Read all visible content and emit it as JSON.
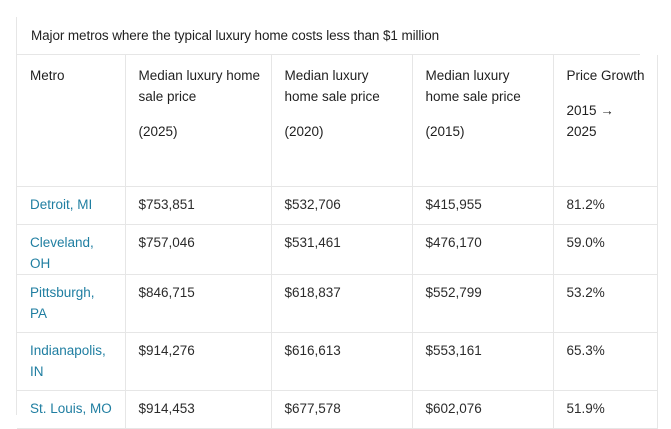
{
  "table": {
    "caption": "Major metros where the typical luxury home costs less than $1 million",
    "headers": [
      {
        "main": "Metro",
        "sub": ""
      },
      {
        "main": "Median luxury home sale price",
        "sub": "(2025)"
      },
      {
        "main": "Median luxury home sale price",
        "sub": "(2020)"
      },
      {
        "main": "Median luxury home sale price",
        "sub": "(2015)"
      },
      {
        "main": "Price Growth",
        "sub": "2015 → 2025"
      }
    ],
    "rows": [
      {
        "metro": "Detroit, MI",
        "p2025": "$753,851",
        "p2020": "$532,706",
        "p2015": "$415,955",
        "growth": "81.2%"
      },
      {
        "metro": "Cleveland, OH",
        "p2025": "$757,046",
        "p2020": "$531,461",
        "p2015": "$476,170",
        "growth": "59.0%"
      },
      {
        "metro": "Pittsburgh, PA",
        "p2025": "$846,715",
        "p2020": "$618,837",
        "p2015": "$552,799",
        "growth": "53.2%"
      },
      {
        "metro": "Indianapolis, IN",
        "p2025": "$914,276",
        "p2020": "$616,613",
        "p2015": "$553,161",
        "growth": "65.3%"
      },
      {
        "metro": "St. Louis, MO",
        "p2025": "$914,453",
        "p2020": "$677,578",
        "p2015": "$602,076",
        "growth": "51.9%"
      }
    ]
  }
}
